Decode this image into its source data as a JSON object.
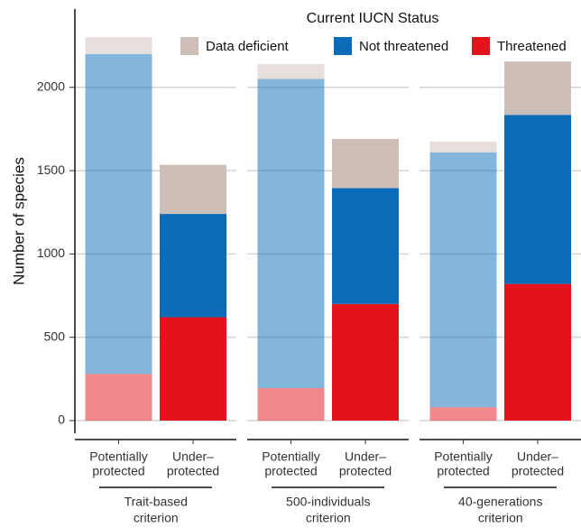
{
  "chart_data": {
    "type": "stacked-bar",
    "y_label": "Number of species",
    "legend_title": "Current IUCN Status",
    "ylim": [
      -76,
      2470
    ],
    "yticks": [
      0,
      500,
      1000,
      1500,
      2000
    ],
    "grid": true,
    "categories": [
      [
        "Potentially",
        "protected"
      ],
      [
        "Under–",
        "protected"
      ]
    ],
    "category_opacity": [
      0.5,
      1
    ],
    "facets": [
      [
        "Trait-based",
        "criterion"
      ],
      [
        "500-individuals",
        "criterion"
      ],
      [
        "40-generations",
        "criterion"
      ]
    ],
    "series": [
      {
        "name": "Threatened",
        "color": "#e3121b",
        "values": [
          [
            280,
            620
          ],
          [
            195,
            700
          ],
          [
            80,
            820
          ]
        ]
      },
      {
        "name": "Not threatened",
        "color": "#0a6cb8",
        "values": [
          [
            1920,
            620
          ],
          [
            1855,
            695
          ],
          [
            1530,
            1015
          ]
        ]
      },
      {
        "name": "Data deficient",
        "color": "#cdbfb8",
        "values": [
          [
            100,
            295
          ],
          [
            90,
            295
          ],
          [
            65,
            320
          ]
        ]
      }
    ]
  }
}
